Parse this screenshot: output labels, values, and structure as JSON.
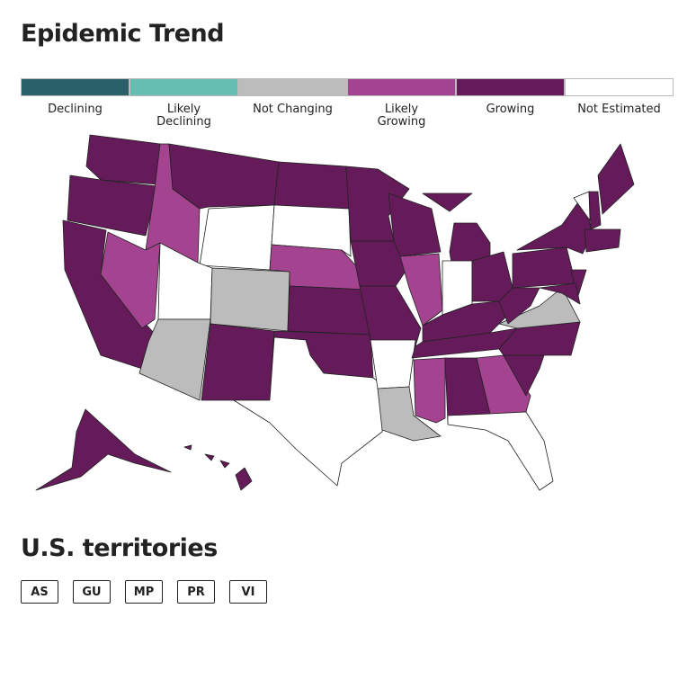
{
  "title": "Epidemic Trend",
  "legend": [
    {
      "label": "Declining",
      "color": "#2a6169"
    },
    {
      "label": "Likely\nDeclining",
      "color": "#66bdb2"
    },
    {
      "label": "Not Changing",
      "color": "#bcbcbc"
    },
    {
      "label": "Likely\nGrowing",
      "color": "#a44490"
    },
    {
      "label": "Growing",
      "color": "#651a5a"
    },
    {
      "label": "Not Estimated",
      "color": "#ffffff"
    }
  ],
  "territories_title": "U.S. territories",
  "territories": [
    "AS",
    "GU",
    "MP",
    "PR",
    "VI"
  ]
}
